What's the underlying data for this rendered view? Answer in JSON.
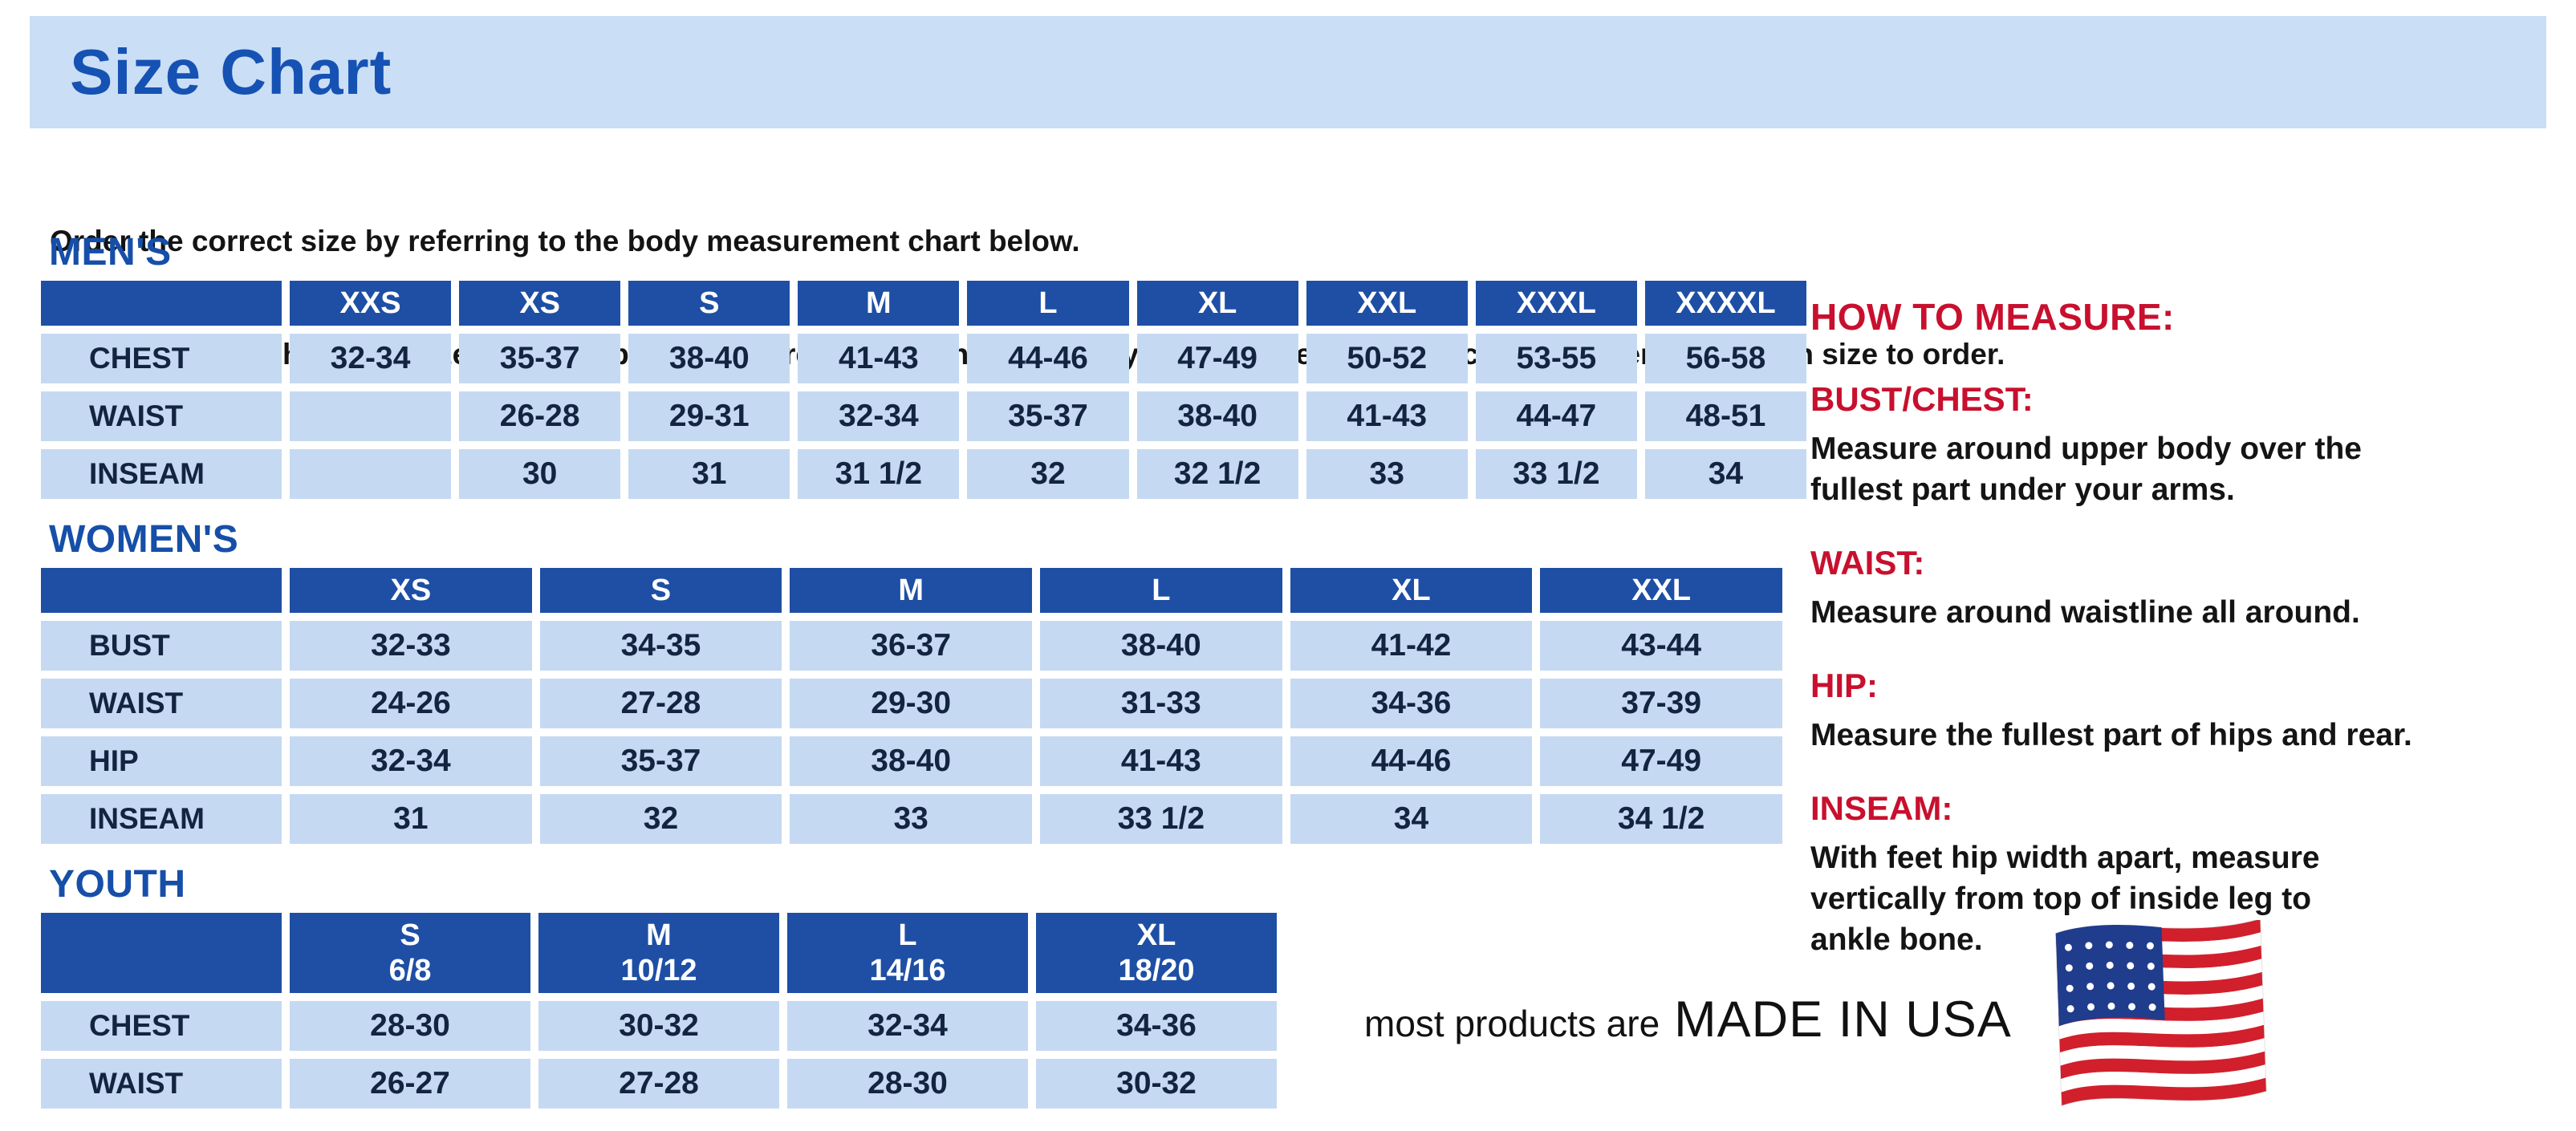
{
  "title": "Size Chart",
  "intro": {
    "line1": "Order the correct size by referring to the body measurement chart below.",
    "line2": "Measurements shown on size chart are body measurements.  Find your body measurements on the chart to determine which size to order."
  },
  "tables": {
    "mens": {
      "heading": "MEN'S",
      "columns": [
        "XXS",
        "XS",
        "S",
        "M",
        "L",
        "XL",
        "XXL",
        "XXXL",
        "XXXXL"
      ],
      "rows": [
        {
          "label": "CHEST",
          "values": [
            "32-34",
            "35-37",
            "38-40",
            "41-43",
            "44-46",
            "47-49",
            "50-52",
            "53-55",
            "56-58"
          ]
        },
        {
          "label": "WAIST",
          "values": [
            "",
            "26-28",
            "29-31",
            "32-34",
            "35-37",
            "38-40",
            "41-43",
            "44-47",
            "48-51"
          ]
        },
        {
          "label": "INSEAM",
          "values": [
            "",
            "30",
            "31",
            "31 1/2",
            "32",
            "32 1/2",
            "33",
            "33 1/2",
            "34"
          ]
        }
      ]
    },
    "womens": {
      "heading": "WOMEN'S",
      "columns": [
        "XS",
        "S",
        "M",
        "L",
        "XL",
        "XXL"
      ],
      "rows": [
        {
          "label": "BUST",
          "values": [
            "32-33",
            "34-35",
            "36-37",
            "38-40",
            "41-42",
            "43-44"
          ]
        },
        {
          "label": "WAIST",
          "values": [
            "24-26",
            "27-28",
            "29-30",
            "31-33",
            "34-36",
            "37-39"
          ]
        },
        {
          "label": "HIP",
          "values": [
            "32-34",
            "35-37",
            "38-40",
            "41-43",
            "44-46",
            "47-49"
          ]
        },
        {
          "label": "INSEAM",
          "values": [
            "31",
            "32",
            "33",
            "33 1/2",
            "34",
            "34 1/2"
          ]
        }
      ]
    },
    "youth": {
      "heading": "YOUTH",
      "columns": [
        [
          "S",
          "6/8"
        ],
        [
          "M",
          "10/12"
        ],
        [
          "L",
          "14/16"
        ],
        [
          "XL",
          "18/20"
        ]
      ],
      "rows": [
        {
          "label": "CHEST",
          "values": [
            "28-30",
            "30-32",
            "32-34",
            "34-36"
          ]
        },
        {
          "label": "WAIST",
          "values": [
            "26-27",
            "27-28",
            "28-30",
            "30-32"
          ]
        }
      ]
    }
  },
  "how_to_measure": {
    "heading": "HOW TO MEASURE:",
    "items": [
      {
        "label": "BUST/CHEST:",
        "text": "Measure around upper body over the\nfullest part under your arms."
      },
      {
        "label": "WAIST:",
        "text": "Measure around waistline all around."
      },
      {
        "label": "HIP:",
        "text": "Measure the fullest part of hips and rear."
      },
      {
        "label": "INSEAM:",
        "text": "With feet hip width apart, measure\nvertically from top of inside leg to\nankle bone."
      }
    ]
  },
  "footer": {
    "prefix": "most products are",
    "emphasis": "MADE IN USA",
    "flag_icon": "usa-flag-icon"
  },
  "colors": {
    "header_blue": "#1e4fa5",
    "cell_blue": "#c6d9f2",
    "banner_blue": "#cadef5",
    "title_blue": "#1552b4",
    "section_blue": "#164fa8",
    "accent_red": "#c8102e",
    "text_dark": "#132441"
  }
}
